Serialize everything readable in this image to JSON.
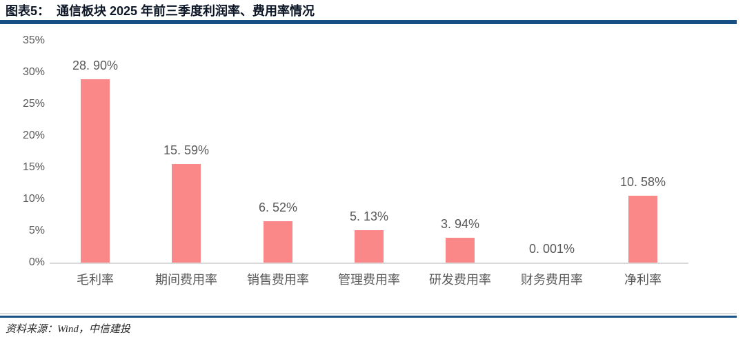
{
  "figure": {
    "label": "图表5：",
    "title": "通信板块 2025 年前三季度利润率、费用率情况"
  },
  "source": {
    "text": "资料来源：Wind，中信建投"
  },
  "colors": {
    "bar": "#fb8888",
    "rule_blue": "#175085",
    "axis_line": "#d9d9d9",
    "tick_text": "#595959",
    "title_text": "#0c1626"
  },
  "chart_data": {
    "type": "bar",
    "title": "通信板块 2025 年前三季度利润率、费用率情况",
    "categories": [
      "毛利率",
      "期间费用率",
      "销售费用率",
      "管理费用率",
      "研发费用率",
      "财务费用率",
      "净利率"
    ],
    "values": [
      28.9,
      15.59,
      6.52,
      5.13,
      3.94,
      0.001,
      10.58
    ],
    "value_labels": [
      "28. 90%",
      "15. 59%",
      "6. 52%",
      "5. 13%",
      "3. 94%",
      "0. 001%",
      "10. 58%"
    ],
    "yticks": [
      "0%",
      "5%",
      "10%",
      "15%",
      "20%",
      "25%",
      "30%",
      "35%"
    ],
    "ytick_values": [
      0,
      5,
      10,
      15,
      20,
      25,
      30,
      35
    ],
    "ylim": [
      0,
      35
    ],
    "xlabel": "",
    "ylabel": "",
    "grid": false,
    "legend": null,
    "bar_color": "#fb8888"
  }
}
